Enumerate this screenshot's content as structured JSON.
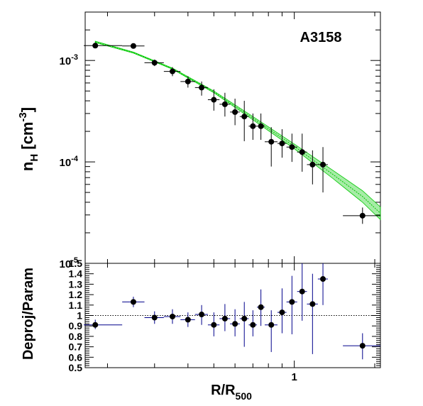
{
  "chart_data": [
    {
      "type": "scatter",
      "panel": "top",
      "annotation": "A3158",
      "ylabel_main": "n",
      "ylabel_sub": "H",
      "ylabel_unit_open": " [cm",
      "ylabel_unit_sup": "-3",
      "ylabel_unit_close": "]",
      "y_scale": "log",
      "ylim": [
        1e-05,
        0.003
      ],
      "x_scale": "log",
      "xlim": [
        0.165,
        2.1
      ],
      "y_ticks": [
        {
          "value": 0.001,
          "base": "10",
          "exp": "-3"
        },
        {
          "value": 0.0001,
          "base": "10",
          "exp": "-4"
        },
        {
          "value": 1e-05,
          "base": "10",
          "exp": "-5"
        }
      ],
      "points": [
        {
          "x": 0.18,
          "xlo": 0.163,
          "xhi": 0.227,
          "y": 0.0014,
          "ylo": 0.00132,
          "yhi": 0.00148
        },
        {
          "x": 0.25,
          "xlo": 0.227,
          "xhi": 0.275,
          "y": 0.00139,
          "ylo": 0.00133,
          "yhi": 0.00145
        },
        {
          "x": 0.3,
          "xlo": 0.275,
          "xhi": 0.325,
          "y": 0.00095,
          "ylo": 0.00088,
          "yhi": 0.00102
        },
        {
          "x": 0.35,
          "xlo": 0.325,
          "xhi": 0.375,
          "y": 0.00078,
          "ylo": 0.0007,
          "yhi": 0.00086
        },
        {
          "x": 0.4,
          "xlo": 0.375,
          "xhi": 0.425,
          "y": 0.00062,
          "ylo": 0.00054,
          "yhi": 0.0007
        },
        {
          "x": 0.45,
          "xlo": 0.425,
          "xhi": 0.475,
          "y": 0.00054,
          "ylo": 0.00045,
          "yhi": 0.00062
        },
        {
          "x": 0.5,
          "xlo": 0.475,
          "xhi": 0.525,
          "y": 0.00041,
          "ylo": 0.00032,
          "yhi": 0.00052
        },
        {
          "x": 0.55,
          "xlo": 0.525,
          "xhi": 0.575,
          "y": 0.00037,
          "ylo": 0.00028,
          "yhi": 0.00048
        },
        {
          "x": 0.6,
          "xlo": 0.575,
          "xhi": 0.625,
          "y": 0.00031,
          "ylo": 0.00023,
          "yhi": 0.00042
        },
        {
          "x": 0.65,
          "xlo": 0.625,
          "xhi": 0.675,
          "y": 0.00028,
          "ylo": 0.00016,
          "yhi": 0.0004
        },
        {
          "x": 0.7,
          "xlo": 0.675,
          "xhi": 0.725,
          "y": 0.000225,
          "ylo": 0.000165,
          "yhi": 0.0003
        },
        {
          "x": 0.75,
          "xlo": 0.725,
          "xhi": 0.775,
          "y": 0.000225,
          "ylo": 0.000165,
          "yhi": 0.0003
        },
        {
          "x": 0.82,
          "xlo": 0.775,
          "xhi": 0.865,
          "y": 0.000158,
          "ylo": 9e-05,
          "yhi": 0.00022
        },
        {
          "x": 0.9,
          "xlo": 0.865,
          "xhi": 0.935,
          "y": 0.000152,
          "ylo": 0.00011,
          "yhi": 0.00021
        },
        {
          "x": 0.98,
          "xlo": 0.935,
          "xhi": 1.025,
          "y": 0.00014,
          "ylo": 0.0001,
          "yhi": 0.00019
        },
        {
          "x": 1.07,
          "xlo": 1.025,
          "xhi": 1.115,
          "y": 0.000125,
          "ylo": 8e-05,
          "yhi": 0.00019
        },
        {
          "x": 1.17,
          "xlo": 1.115,
          "xhi": 1.225,
          "y": 9.4e-05,
          "ylo": 6e-05,
          "yhi": 0.00013
        },
        {
          "x": 1.28,
          "xlo": 1.225,
          "xhi": 1.335,
          "y": 9.4e-05,
          "ylo": 5e-05,
          "yhi": 0.00014
        },
        {
          "x": 1.8,
          "xlo": 1.52,
          "xhi": 2.1,
          "y": 2.95e-05,
          "ylo": 2.45e-05,
          "yhi": 3.55e-05
        }
      ],
      "model_band": [
        {
          "x": 0.18,
          "lo": 0.0015,
          "hi": 0.00155
        },
        {
          "x": 0.25,
          "lo": 0.00118,
          "hi": 0.00121
        },
        {
          "x": 0.35,
          "lo": 0.00082,
          "hi": 0.00084
        },
        {
          "x": 0.5,
          "lo": 0.00048,
          "hi": 0.0005
        },
        {
          "x": 0.7,
          "lo": 0.00026,
          "hi": 0.00028
        },
        {
          "x": 1.0,
          "lo": 0.000135,
          "hi": 0.00015
        },
        {
          "x": 1.4,
          "lo": 6.8e-05,
          "hi": 8.2e-05
        },
        {
          "x": 1.8,
          "lo": 4e-05,
          "hi": 5.2e-05
        },
        {
          "x": 2.1,
          "lo": 2.7e-05,
          "hi": 3.6e-05
        }
      ]
    },
    {
      "type": "scatter",
      "panel": "bottom",
      "ylabel": "Deproj/Param",
      "xlabel_main": "R/R",
      "xlabel_sub": "500",
      "x_scale": "log",
      "xlim": [
        0.165,
        2.1
      ],
      "ylim": [
        0.5,
        1.5
      ],
      "y_ticks": [
        {
          "value": 0.5,
          "label": "0.5"
        },
        {
          "value": 0.6,
          "label": "0.6"
        },
        {
          "value": 0.7,
          "label": "0.7"
        },
        {
          "value": 0.8,
          "label": "0.8"
        },
        {
          "value": 0.9,
          "label": "0.9"
        },
        {
          "value": 1.0,
          "label": "1"
        },
        {
          "value": 1.1,
          "label": "1.1"
        },
        {
          "value": 1.2,
          "label": "1.2"
        },
        {
          "value": 1.3,
          "label": "1.3"
        },
        {
          "value": 1.4,
          "label": "1.4"
        },
        {
          "value": 1.5,
          "label": "1.5"
        }
      ],
      "x_ticks": [
        {
          "value": 1,
          "label": "1"
        }
      ],
      "reference_line": 1.0,
      "points": [
        {
          "x": 0.18,
          "xlo": 0.163,
          "xhi": 0.227,
          "y": 0.91,
          "ylo": 0.87,
          "yhi": 0.96
        },
        {
          "x": 0.25,
          "xlo": 0.227,
          "xhi": 0.275,
          "y": 1.13,
          "ylo": 1.08,
          "yhi": 1.18
        },
        {
          "x": 0.3,
          "xlo": 0.275,
          "xhi": 0.325,
          "y": 0.98,
          "ylo": 0.92,
          "yhi": 1.04
        },
        {
          "x": 0.35,
          "xlo": 0.325,
          "xhi": 0.375,
          "y": 0.99,
          "ylo": 0.92,
          "yhi": 1.06
        },
        {
          "x": 0.4,
          "xlo": 0.375,
          "xhi": 0.425,
          "y": 0.96,
          "ylo": 0.89,
          "yhi": 1.03
        },
        {
          "x": 0.45,
          "xlo": 0.425,
          "xhi": 0.475,
          "y": 1.01,
          "ylo": 0.91,
          "yhi": 1.1
        },
        {
          "x": 0.5,
          "xlo": 0.475,
          "xhi": 0.525,
          "y": 0.91,
          "ylo": 0.8,
          "yhi": 1.03
        },
        {
          "x": 0.55,
          "xlo": 0.525,
          "xhi": 0.575,
          "y": 0.97,
          "ylo": 0.85,
          "yhi": 1.11
        },
        {
          "x": 0.6,
          "xlo": 0.575,
          "xhi": 0.625,
          "y": 0.92,
          "ylo": 0.8,
          "yhi": 1.06
        },
        {
          "x": 0.65,
          "xlo": 0.625,
          "xhi": 0.675,
          "y": 0.97,
          "ylo": 0.7,
          "yhi": 1.13
        },
        {
          "x": 0.7,
          "xlo": 0.675,
          "xhi": 0.725,
          "y": 0.91,
          "ylo": 0.8,
          "yhi": 1.05
        },
        {
          "x": 0.75,
          "xlo": 0.725,
          "xhi": 0.775,
          "y": 1.08,
          "ylo": 0.9,
          "yhi": 1.25
        },
        {
          "x": 0.82,
          "xlo": 0.775,
          "xhi": 0.865,
          "y": 0.91,
          "ylo": 0.65,
          "yhi": 1.05
        },
        {
          "x": 0.9,
          "xlo": 0.865,
          "xhi": 0.935,
          "y": 1.03,
          "ylo": 0.83,
          "yhi": 1.26
        },
        {
          "x": 0.98,
          "xlo": 0.935,
          "xhi": 1.025,
          "y": 1.13,
          "ylo": 0.82,
          "yhi": 1.38
        },
        {
          "x": 1.07,
          "xlo": 1.025,
          "xhi": 1.115,
          "y": 1.23,
          "ylo": 0.95,
          "yhi": 1.5
        },
        {
          "x": 1.17,
          "xlo": 1.115,
          "xhi": 1.225,
          "y": 1.11,
          "ylo": 0.63,
          "yhi": 1.4
        },
        {
          "x": 1.28,
          "xlo": 1.225,
          "xhi": 1.335,
          "y": 1.35,
          "ylo": 1.1,
          "yhi": 1.5
        },
        {
          "x": 1.8,
          "xlo": 1.52,
          "xhi": 2.1,
          "y": 0.71,
          "ylo": 0.58,
          "yhi": 0.83
        }
      ]
    }
  ],
  "colors": {
    "marker": "#000000",
    "top_error": "#000000",
    "bottom_error": "#00008b",
    "model_band": "#00c800"
  }
}
